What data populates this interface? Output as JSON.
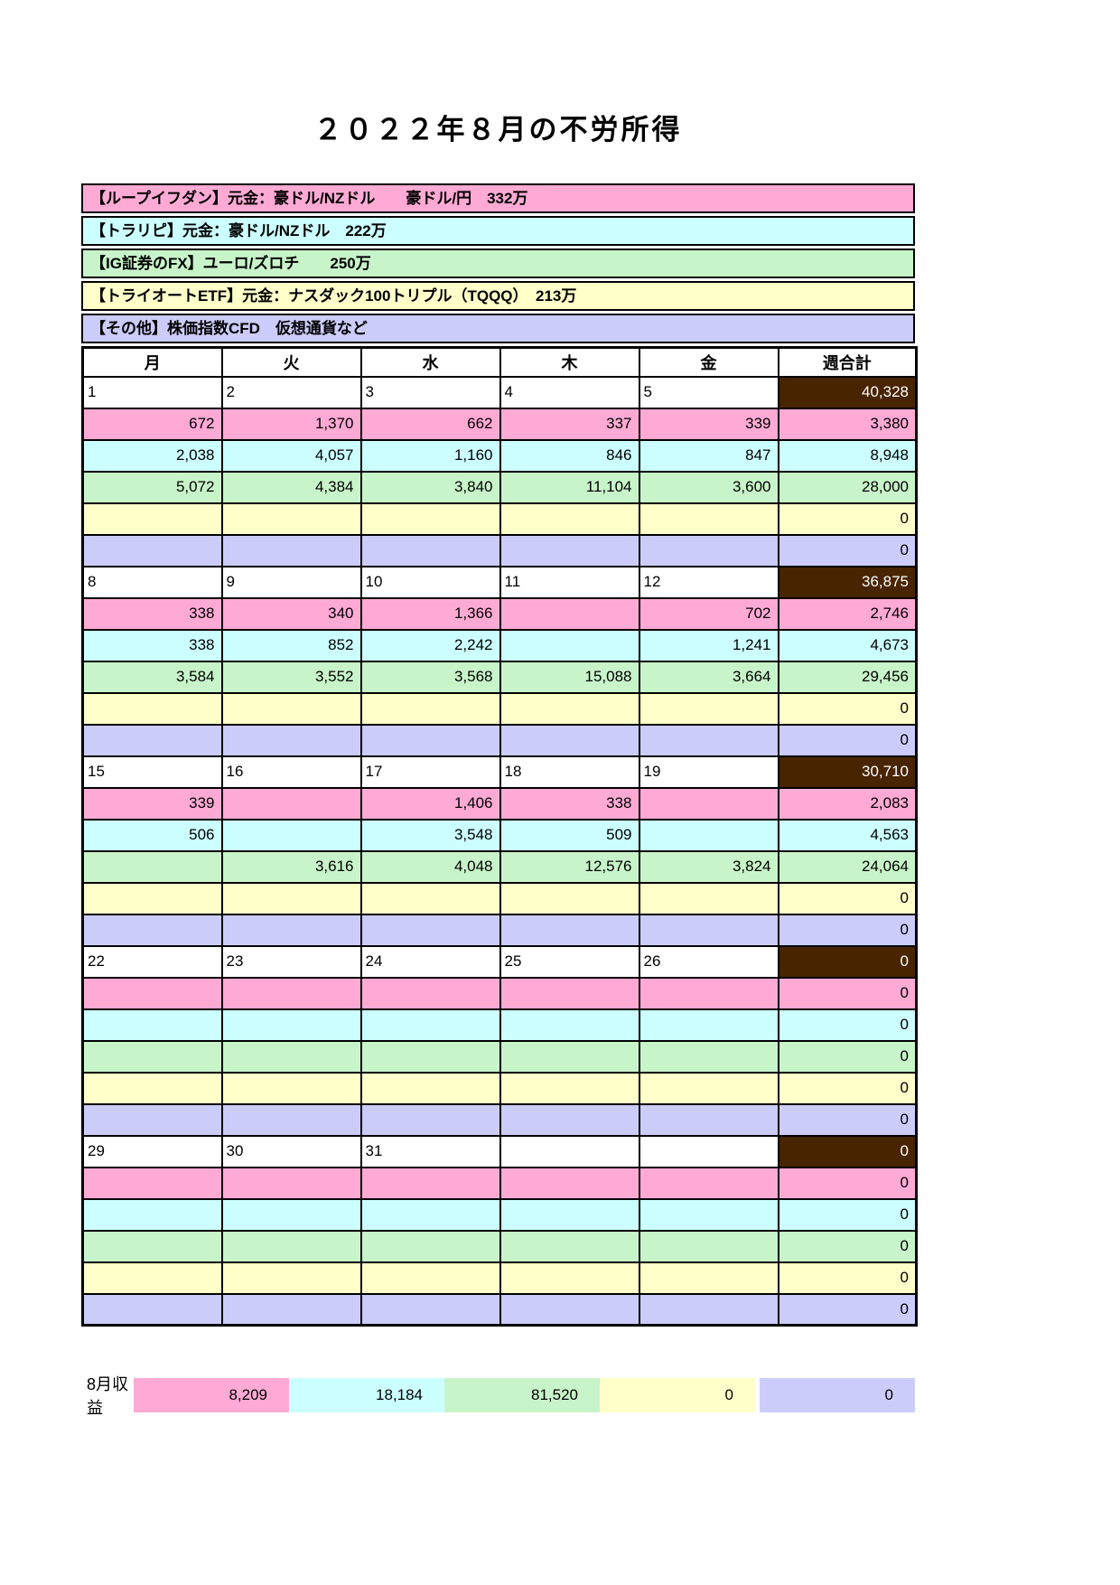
{
  "title": "２０２２年８月の不労所得",
  "colors": {
    "pink": "#ffaad5",
    "cyan": "#ccffff",
    "green": "#c8f4c9",
    "yellow": "#ffffca",
    "purple": "#ccccfa",
    "dark": "#482400"
  },
  "row_colors": [
    "pink",
    "cyan",
    "green",
    "yellow",
    "purple"
  ],
  "legend": [
    {
      "label": "【ループイフダン】元金：豪ドル/NZドル　　豪ドル/円　332万",
      "color_key": "pink"
    },
    {
      "label": "【トラリピ】元金：豪ドル/NZドル　222万",
      "color_key": "cyan"
    },
    {
      "label": "【IG証券のFX】ユーロ/ズロチ　　250万",
      "color_key": "green"
    },
    {
      "label": "【トライオートETF】元金：ナスダック100トリプル（TQQQ）　213万",
      "color_key": "yellow"
    },
    {
      "label": "【その他】株価指数CFD　仮想通貨など",
      "color_key": "purple"
    }
  ],
  "calendar": {
    "headers": [
      "月",
      "火",
      "水",
      "木",
      "金",
      "週合計"
    ],
    "weeks": [
      {
        "days": [
          "1",
          "2",
          "3",
          "4",
          "5"
        ],
        "week_total": "40,328",
        "rows": [
          {
            "values": [
              "672",
              "1,370",
              "662",
              "337",
              "339"
            ],
            "total": "3,380"
          },
          {
            "values": [
              "2,038",
              "4,057",
              "1,160",
              "846",
              "847"
            ],
            "total": "8,948"
          },
          {
            "values": [
              "5,072",
              "4,384",
              "3,840",
              "11,104",
              "3,600"
            ],
            "total": "28,000"
          },
          {
            "values": [
              "",
              "",
              "",
              "",
              ""
            ],
            "total": "0"
          },
          {
            "values": [
              "",
              "",
              "",
              "",
              ""
            ],
            "total": "0"
          }
        ]
      },
      {
        "days": [
          "8",
          "9",
          "10",
          "11",
          "12"
        ],
        "week_total": "36,875",
        "rows": [
          {
            "values": [
              "338",
              "340",
              "1,366",
              "",
              "702"
            ],
            "total": "2,746"
          },
          {
            "values": [
              "338",
              "852",
              "2,242",
              "",
              "1,241"
            ],
            "total": "4,673"
          },
          {
            "values": [
              "3,584",
              "3,552",
              "3,568",
              "15,088",
              "3,664"
            ],
            "total": "29,456"
          },
          {
            "values": [
              "",
              "",
              "",
              "",
              ""
            ],
            "total": "0"
          },
          {
            "values": [
              "",
              "",
              "",
              "",
              ""
            ],
            "total": "0"
          }
        ]
      },
      {
        "days": [
          "15",
          "16",
          "17",
          "18",
          "19"
        ],
        "week_total": "30,710",
        "rows": [
          {
            "values": [
              "339",
              "",
              "1,406",
              "338",
              ""
            ],
            "total": "2,083"
          },
          {
            "values": [
              "506",
              "",
              "3,548",
              "509",
              ""
            ],
            "total": "4,563"
          },
          {
            "values": [
              "",
              "3,616",
              "4,048",
              "12,576",
              "3,824"
            ],
            "total": "24,064"
          },
          {
            "values": [
              "",
              "",
              "",
              "",
              ""
            ],
            "total": "0"
          },
          {
            "values": [
              "",
              "",
              "",
              "",
              ""
            ],
            "total": "0"
          }
        ]
      },
      {
        "days": [
          "22",
          "23",
          "24",
          "25",
          "26"
        ],
        "week_total": "0",
        "rows": [
          {
            "values": [
              "",
              "",
              "",
              "",
              ""
            ],
            "total": "0"
          },
          {
            "values": [
              "",
              "",
              "",
              "",
              ""
            ],
            "total": "0"
          },
          {
            "values": [
              "",
              "",
              "",
              "",
              ""
            ],
            "total": "0"
          },
          {
            "values": [
              "",
              "",
              "",
              "",
              ""
            ],
            "total": "0"
          },
          {
            "values": [
              "",
              "",
              "",
              "",
              ""
            ],
            "total": "0"
          }
        ]
      },
      {
        "days": [
          "29",
          "30",
          "31",
          "",
          ""
        ],
        "week_total": "0",
        "rows": [
          {
            "values": [
              "",
              "",
              "",
              "",
              ""
            ],
            "total": "0"
          },
          {
            "values": [
              "",
              "",
              "",
              "",
              ""
            ],
            "total": "0"
          },
          {
            "values": [
              "",
              "",
              "",
              "",
              ""
            ],
            "total": "0"
          },
          {
            "values": [
              "",
              "",
              "",
              "",
              ""
            ],
            "total": "0"
          },
          {
            "values": [
              "",
              "",
              "",
              "",
              ""
            ],
            "total": "0"
          }
        ]
      }
    ]
  },
  "summary": {
    "label": "8月収益",
    "values": [
      {
        "value": "8,209",
        "color_key": "pink"
      },
      {
        "value": "18,184",
        "color_key": "cyan"
      },
      {
        "value": "81,520",
        "color_key": "green"
      },
      {
        "value": "0",
        "color_key": "yellow"
      },
      {
        "value": "0",
        "color_key": "purple"
      }
    ]
  }
}
